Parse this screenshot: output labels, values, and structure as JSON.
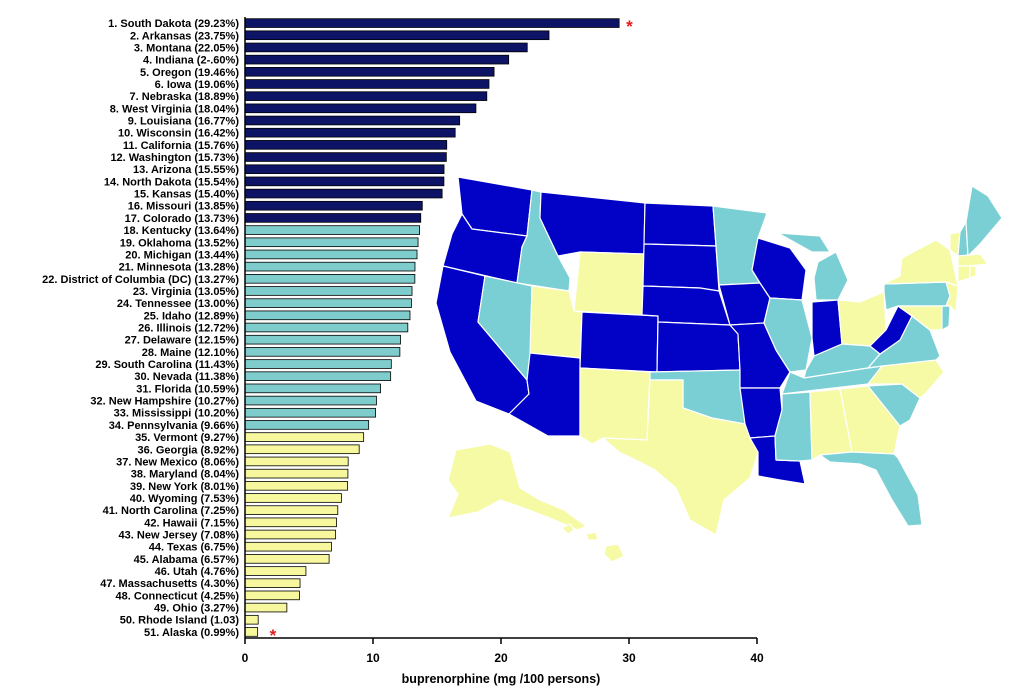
{
  "chart_data": {
    "type": "bar",
    "orientation": "horizontal",
    "xlabel": "buprenorphine (mg /100 persons)",
    "xlim": [
      0,
      40
    ],
    "xticks": [
      "0",
      "10",
      "20",
      "30",
      "40"
    ],
    "grid": false,
    "colors": {
      "high": "#0d1466",
      "mid": "#7fcccc",
      "low": "#f7f79e",
      "map_high": "#0202c6",
      "map_mid": "#79cfd3",
      "map_low": "#f6faa4"
    },
    "categories": [
      "1. South Dakota (29.23%)",
      "2. Arkansas (23.75%)",
      "3. Montana (22.05%)",
      "4. Indiana (2-.60%)",
      "5. Oregon (19.46%)",
      "6. Iowa (19.06%)",
      "7. Nebraska (18.89%)",
      "8. West Virginia (18.04%)",
      "9. Louisiana (16.77%)",
      "10. Wisconsin (16.42%)",
      "11. California (15.76%)",
      "12. Washington (15.73%)",
      "13. Arizona (15.55%)",
      "14. North Dakota (15.54%)",
      "15. Kansas (15.40%)",
      "16. Missouri (13.85%)",
      "17. Colorado (13.73%)",
      "18. Kentucky (13.64%)",
      "19. Oklahoma (13.52%)",
      "20. Michigan (13.44%)",
      "21. Minnesota (13.28%)",
      "22. District of Columbia (DC) (13.27%)",
      "23. Virginia (13.05%)",
      "24. Tennessee (13.00%)",
      "25. Idaho (12.89%)",
      "26. Illinois (12.72%)",
      "27. Delaware (12.15%)",
      "28. Maine (12.10%)",
      "29. South Carolina (11.43%)",
      "30. Nevada (11.38%)",
      "31. Florida (10.59%)",
      "32. New Hampshire (10.27%)",
      "33. Mississippi (10.20%)",
      "34. Pennsylvania (9.66%)",
      "35. Vermont (9.27%)",
      "36. Georgia (8.92%)",
      "37. New Mexico (8.06%)",
      "38. Maryland (8.04%)",
      "39. New York (8.01%)",
      "40. Wyoming (7.53%)",
      "41. North Carolina (7.25%)",
      "42. Hawaii (7.15%)",
      "43. New Jersey (7.08%)",
      "44. Texas (6.75%)",
      "45. Alabama (6.57%)",
      "46. Utah (4.76%)",
      "47. Massachusetts (4.30%)",
      "48. Connecticut (4.25%)",
      "49. Ohio (3.27%)",
      "50. Rhode Island (1.03)",
      "51. Alaska (0.99%)"
    ],
    "values": [
      29.23,
      23.75,
      22.05,
      20.6,
      19.46,
      19.06,
      18.89,
      18.04,
      16.77,
      16.42,
      15.76,
      15.73,
      15.55,
      15.54,
      15.4,
      13.85,
      13.73,
      13.64,
      13.52,
      13.44,
      13.28,
      13.27,
      13.05,
      13.0,
      12.89,
      12.72,
      12.15,
      12.1,
      11.43,
      11.38,
      10.59,
      10.27,
      10.2,
      9.66,
      9.27,
      8.92,
      8.06,
      8.04,
      8.01,
      7.53,
      7.25,
      7.15,
      7.08,
      6.75,
      6.57,
      4.76,
      4.3,
      4.25,
      3.27,
      1.03,
      0.99
    ],
    "tiers": [
      "high",
      "high",
      "high",
      "high",
      "high",
      "high",
      "high",
      "high",
      "high",
      "high",
      "high",
      "high",
      "high",
      "high",
      "high",
      "high",
      "high",
      "mid",
      "mid",
      "mid",
      "mid",
      "mid",
      "mid",
      "mid",
      "mid",
      "mid",
      "mid",
      "mid",
      "mid",
      "mid",
      "mid",
      "mid",
      "mid",
      "mid",
      "low",
      "low",
      "low",
      "low",
      "low",
      "low",
      "low",
      "low",
      "low",
      "low",
      "low",
      "low",
      "low",
      "low",
      "low",
      "low",
      "low"
    ],
    "annotations": [
      {
        "text": "*",
        "target": "1. South Dakota (29.23%)"
      },
      {
        "text": "*",
        "target": "51. Alaska (0.99%)"
      }
    ],
    "map_states": [
      {
        "name": "Washington",
        "tier": "high"
      },
      {
        "name": "Oregon",
        "tier": "high"
      },
      {
        "name": "California",
        "tier": "high"
      },
      {
        "name": "Idaho",
        "tier": "mid"
      },
      {
        "name": "Nevada",
        "tier": "mid"
      },
      {
        "name": "Montana",
        "tier": "high"
      },
      {
        "name": "Wyoming",
        "tier": "low"
      },
      {
        "name": "Utah",
        "tier": "low"
      },
      {
        "name": "Arizona",
        "tier": "high"
      },
      {
        "name": "Colorado",
        "tier": "high"
      },
      {
        "name": "New Mexico",
        "tier": "low"
      },
      {
        "name": "North Dakota",
        "tier": "high"
      },
      {
        "name": "South Dakota",
        "tier": "high"
      },
      {
        "name": "Nebraska",
        "tier": "high"
      },
      {
        "name": "Kansas",
        "tier": "high"
      },
      {
        "name": "Oklahoma",
        "tier": "mid"
      },
      {
        "name": "Texas",
        "tier": "low"
      },
      {
        "name": "Minnesota",
        "tier": "mid"
      },
      {
        "name": "Iowa",
        "tier": "high"
      },
      {
        "name": "Missouri",
        "tier": "high"
      },
      {
        "name": "Arkansas",
        "tier": "high"
      },
      {
        "name": "Louisiana",
        "tier": "high"
      },
      {
        "name": "Wisconsin",
        "tier": "high"
      },
      {
        "name": "Illinois",
        "tier": "mid"
      },
      {
        "name": "Michigan",
        "tier": "mid"
      },
      {
        "name": "Indiana",
        "tier": "high"
      },
      {
        "name": "Ohio",
        "tier": "low"
      },
      {
        "name": "Kentucky",
        "tier": "mid"
      },
      {
        "name": "Tennessee",
        "tier": "mid"
      },
      {
        "name": "Mississippi",
        "tier": "mid"
      },
      {
        "name": "Alabama",
        "tier": "low"
      },
      {
        "name": "Georgia",
        "tier": "low"
      },
      {
        "name": "Florida",
        "tier": "mid"
      },
      {
        "name": "South Carolina",
        "tier": "mid"
      },
      {
        "name": "North Carolina",
        "tier": "low"
      },
      {
        "name": "Virginia",
        "tier": "mid"
      },
      {
        "name": "West Virginia",
        "tier": "high"
      },
      {
        "name": "Pennsylvania",
        "tier": "mid"
      },
      {
        "name": "New York",
        "tier": "low"
      },
      {
        "name": "Vermont",
        "tier": "low"
      },
      {
        "name": "New Hampshire",
        "tier": "mid"
      },
      {
        "name": "Maine",
        "tier": "mid"
      },
      {
        "name": "Massachusetts",
        "tier": "low"
      },
      {
        "name": "Connecticut",
        "tier": "low"
      },
      {
        "name": "Rhode Island",
        "tier": "low"
      },
      {
        "name": "New Jersey",
        "tier": "low"
      },
      {
        "name": "Delaware",
        "tier": "mid"
      },
      {
        "name": "Maryland",
        "tier": "low"
      },
      {
        "name": "Alaska",
        "tier": "low"
      },
      {
        "name": "Hawaii",
        "tier": "low"
      }
    ]
  }
}
